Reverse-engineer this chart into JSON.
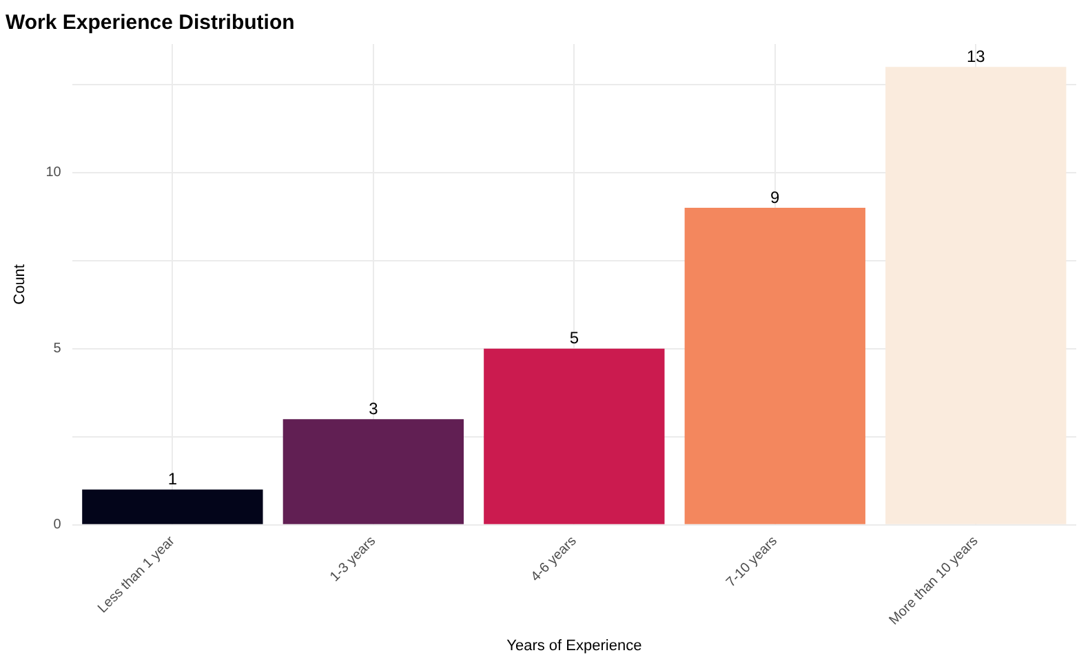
{
  "chart_data": {
    "type": "bar",
    "title": "Work Experience Distribution",
    "xlabel": "Years of Experience",
    "ylabel": "Count",
    "categories": [
      "Less than 1 year",
      "1-3 years",
      "4-6 years",
      "7-10 years",
      "More than 10 years"
    ],
    "values": [
      1,
      3,
      5,
      9,
      13
    ],
    "colors": [
      "#03051a",
      "#611f53",
      "#cb1b4f",
      "#f3875e",
      "#faebdd"
    ],
    "ylim": [
      0,
      13.65
    ],
    "yticks": [
      0,
      {
        "value": 2.5,
        "label": null
      },
      5,
      {
        "value": 7.5,
        "label": null
      },
      10,
      {
        "value": 12.5,
        "label": null
      }
    ],
    "grid": true,
    "data_labels": true
  }
}
